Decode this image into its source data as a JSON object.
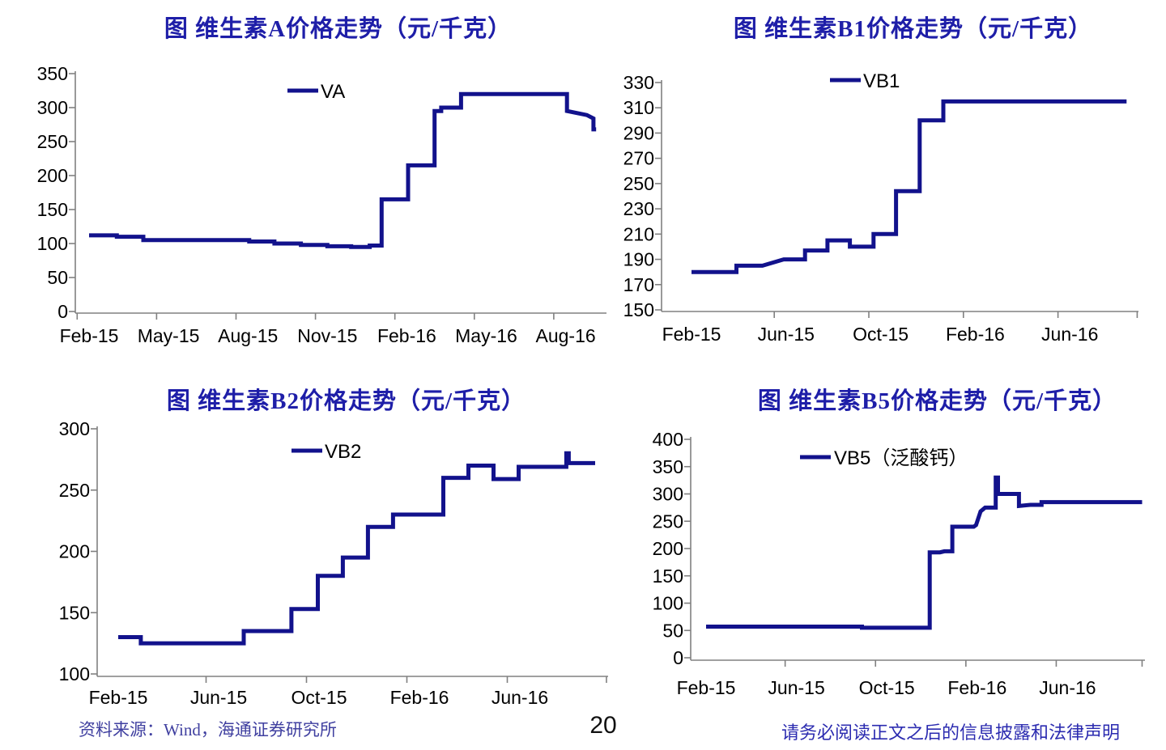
{
  "page": {
    "number": "20"
  },
  "footer": {
    "source": "资料来源：Wind，海通证券研究所",
    "disclaimer": "请务必阅读正文之后的信息披露和法律声明"
  },
  "colors": {
    "line": "#12128C",
    "title": "#1e1ea8",
    "source": "#4040a0",
    "disclaimer": "#2b2bb0",
    "axis": "#808080"
  },
  "chart_data": [
    {
      "type": "line",
      "title": "图 维生素A价格走势（元/千克）",
      "legend": "VA",
      "ylim": [
        0,
        350
      ],
      "ystep": 50,
      "x_labels": [
        "Feb-15",
        "May-15",
        "Aug-15",
        "Nov-15",
        "Feb-16",
        "May-16",
        "Aug-16"
      ],
      "x_label_months": [
        0,
        3,
        6,
        9,
        12,
        15,
        18
      ],
      "grid": false,
      "legend_position": "top-center",
      "points_unit": "months since Feb-15; price 元/千克",
      "points": [
        [
          0,
          112
        ],
        [
          1.05,
          112
        ],
        [
          1.05,
          110
        ],
        [
          2.05,
          110
        ],
        [
          2.05,
          105
        ],
        [
          6.05,
          105
        ],
        [
          6.05,
          103
        ],
        [
          7.0,
          103
        ],
        [
          7.0,
          100
        ],
        [
          8.0,
          100
        ],
        [
          8.0,
          98
        ],
        [
          9.0,
          98
        ],
        [
          9.0,
          96
        ],
        [
          9.9,
          96
        ],
        [
          9.9,
          95
        ],
        [
          10.6,
          95
        ],
        [
          10.6,
          97
        ],
        [
          11.05,
          97
        ],
        [
          11.05,
          165
        ],
        [
          12.05,
          165
        ],
        [
          12.05,
          215
        ],
        [
          13.05,
          215
        ],
        [
          13.05,
          295
        ],
        [
          13.3,
          295
        ],
        [
          13.3,
          300
        ],
        [
          14.05,
          300
        ],
        [
          14.05,
          320
        ],
        [
          18.05,
          320
        ],
        [
          18.05,
          295
        ],
        [
          18.8,
          289
        ],
        [
          19.05,
          284
        ],
        [
          19.05,
          268
        ],
        [
          19.15,
          268
        ]
      ]
    },
    {
      "type": "line",
      "title": "图 维生素B1价格走势（元/千克）",
      "legend": "VB1",
      "ylim": [
        150,
        330
      ],
      "ystep": 20,
      "x_labels": [
        "Feb-15",
        "Jun-15",
        "Oct-15",
        "Feb-16",
        "Jun-16"
      ],
      "x_label_months": [
        0,
        4,
        8,
        12,
        16
      ],
      "grid": false,
      "legend_position": "top-center",
      "points_unit": "months since Feb-15; price 元/千克",
      "points": [
        [
          0,
          180
        ],
        [
          1.9,
          180
        ],
        [
          1.9,
          185
        ],
        [
          3.0,
          185
        ],
        [
          3.9,
          190
        ],
        [
          4.8,
          190
        ],
        [
          4.8,
          197
        ],
        [
          5.75,
          197
        ],
        [
          5.75,
          205
        ],
        [
          6.7,
          205
        ],
        [
          6.7,
          200
        ],
        [
          7.7,
          200
        ],
        [
          7.7,
          210
        ],
        [
          8.65,
          210
        ],
        [
          8.65,
          244
        ],
        [
          9.65,
          244
        ],
        [
          9.65,
          300
        ],
        [
          10.65,
          300
        ],
        [
          10.65,
          315
        ],
        [
          18.4,
          315
        ]
      ]
    },
    {
      "type": "line",
      "title": "图 维生素B2价格走势（元/千克）",
      "legend": "VB2",
      "ylim": [
        100,
        300
      ],
      "ystep": 50,
      "x_labels": [
        "Feb-15",
        "Jun-15",
        "Oct-15",
        "Feb-16",
        "Jun-16"
      ],
      "x_label_months": [
        0,
        4,
        8,
        12,
        16
      ],
      "grid": false,
      "legend_position": "top-center",
      "points_unit": "months since Feb-15; price 元/千克",
      "points": [
        [
          0,
          130
        ],
        [
          0.9,
          130
        ],
        [
          0.9,
          125
        ],
        [
          5.0,
          125
        ],
        [
          5.0,
          135
        ],
        [
          6.9,
          135
        ],
        [
          6.9,
          153
        ],
        [
          7.95,
          153
        ],
        [
          7.95,
          180
        ],
        [
          8.95,
          180
        ],
        [
          8.95,
          195
        ],
        [
          9.95,
          195
        ],
        [
          9.95,
          220
        ],
        [
          10.95,
          220
        ],
        [
          10.95,
          230
        ],
        [
          12.95,
          230
        ],
        [
          12.95,
          260
        ],
        [
          13.95,
          260
        ],
        [
          13.95,
          270
        ],
        [
          14.95,
          270
        ],
        [
          14.95,
          259
        ],
        [
          15.95,
          259
        ],
        [
          15.95,
          269
        ],
        [
          17.85,
          269
        ],
        [
          17.85,
          280
        ],
        [
          17.95,
          280
        ],
        [
          17.95,
          272
        ],
        [
          19.0,
          272
        ]
      ]
    },
    {
      "type": "line",
      "title": "图 维生素B5价格走势（元/千克）",
      "legend": "VB5（泛酸钙）",
      "ylim": [
        0,
        400
      ],
      "ystep": 50,
      "x_labels": [
        "Feb-15",
        "Jun-15",
        "Oct-15",
        "Feb-16",
        "Jun-16"
      ],
      "x_label_months": [
        0,
        4,
        8,
        12,
        16
      ],
      "grid": false,
      "legend_position": "top-center",
      "points_unit": "months since Feb-15; price 元/千克",
      "points": [
        [
          0,
          57
        ],
        [
          6.9,
          57
        ],
        [
          6.9,
          55
        ],
        [
          9.9,
          55
        ],
        [
          9.9,
          193
        ],
        [
          10.35,
          193
        ],
        [
          10.55,
          195
        ],
        [
          10.9,
          195
        ],
        [
          10.9,
          240
        ],
        [
          11.85,
          240
        ],
        [
          11.95,
          243
        ],
        [
          12.15,
          268
        ],
        [
          12.35,
          275
        ],
        [
          12.82,
          275
        ],
        [
          12.82,
          330
        ],
        [
          12.92,
          330
        ],
        [
          12.92,
          300
        ],
        [
          13.85,
          300
        ],
        [
          13.85,
          278
        ],
        [
          14.35,
          280
        ],
        [
          14.85,
          280
        ],
        [
          14.85,
          285
        ],
        [
          19.3,
          285
        ]
      ]
    }
  ]
}
